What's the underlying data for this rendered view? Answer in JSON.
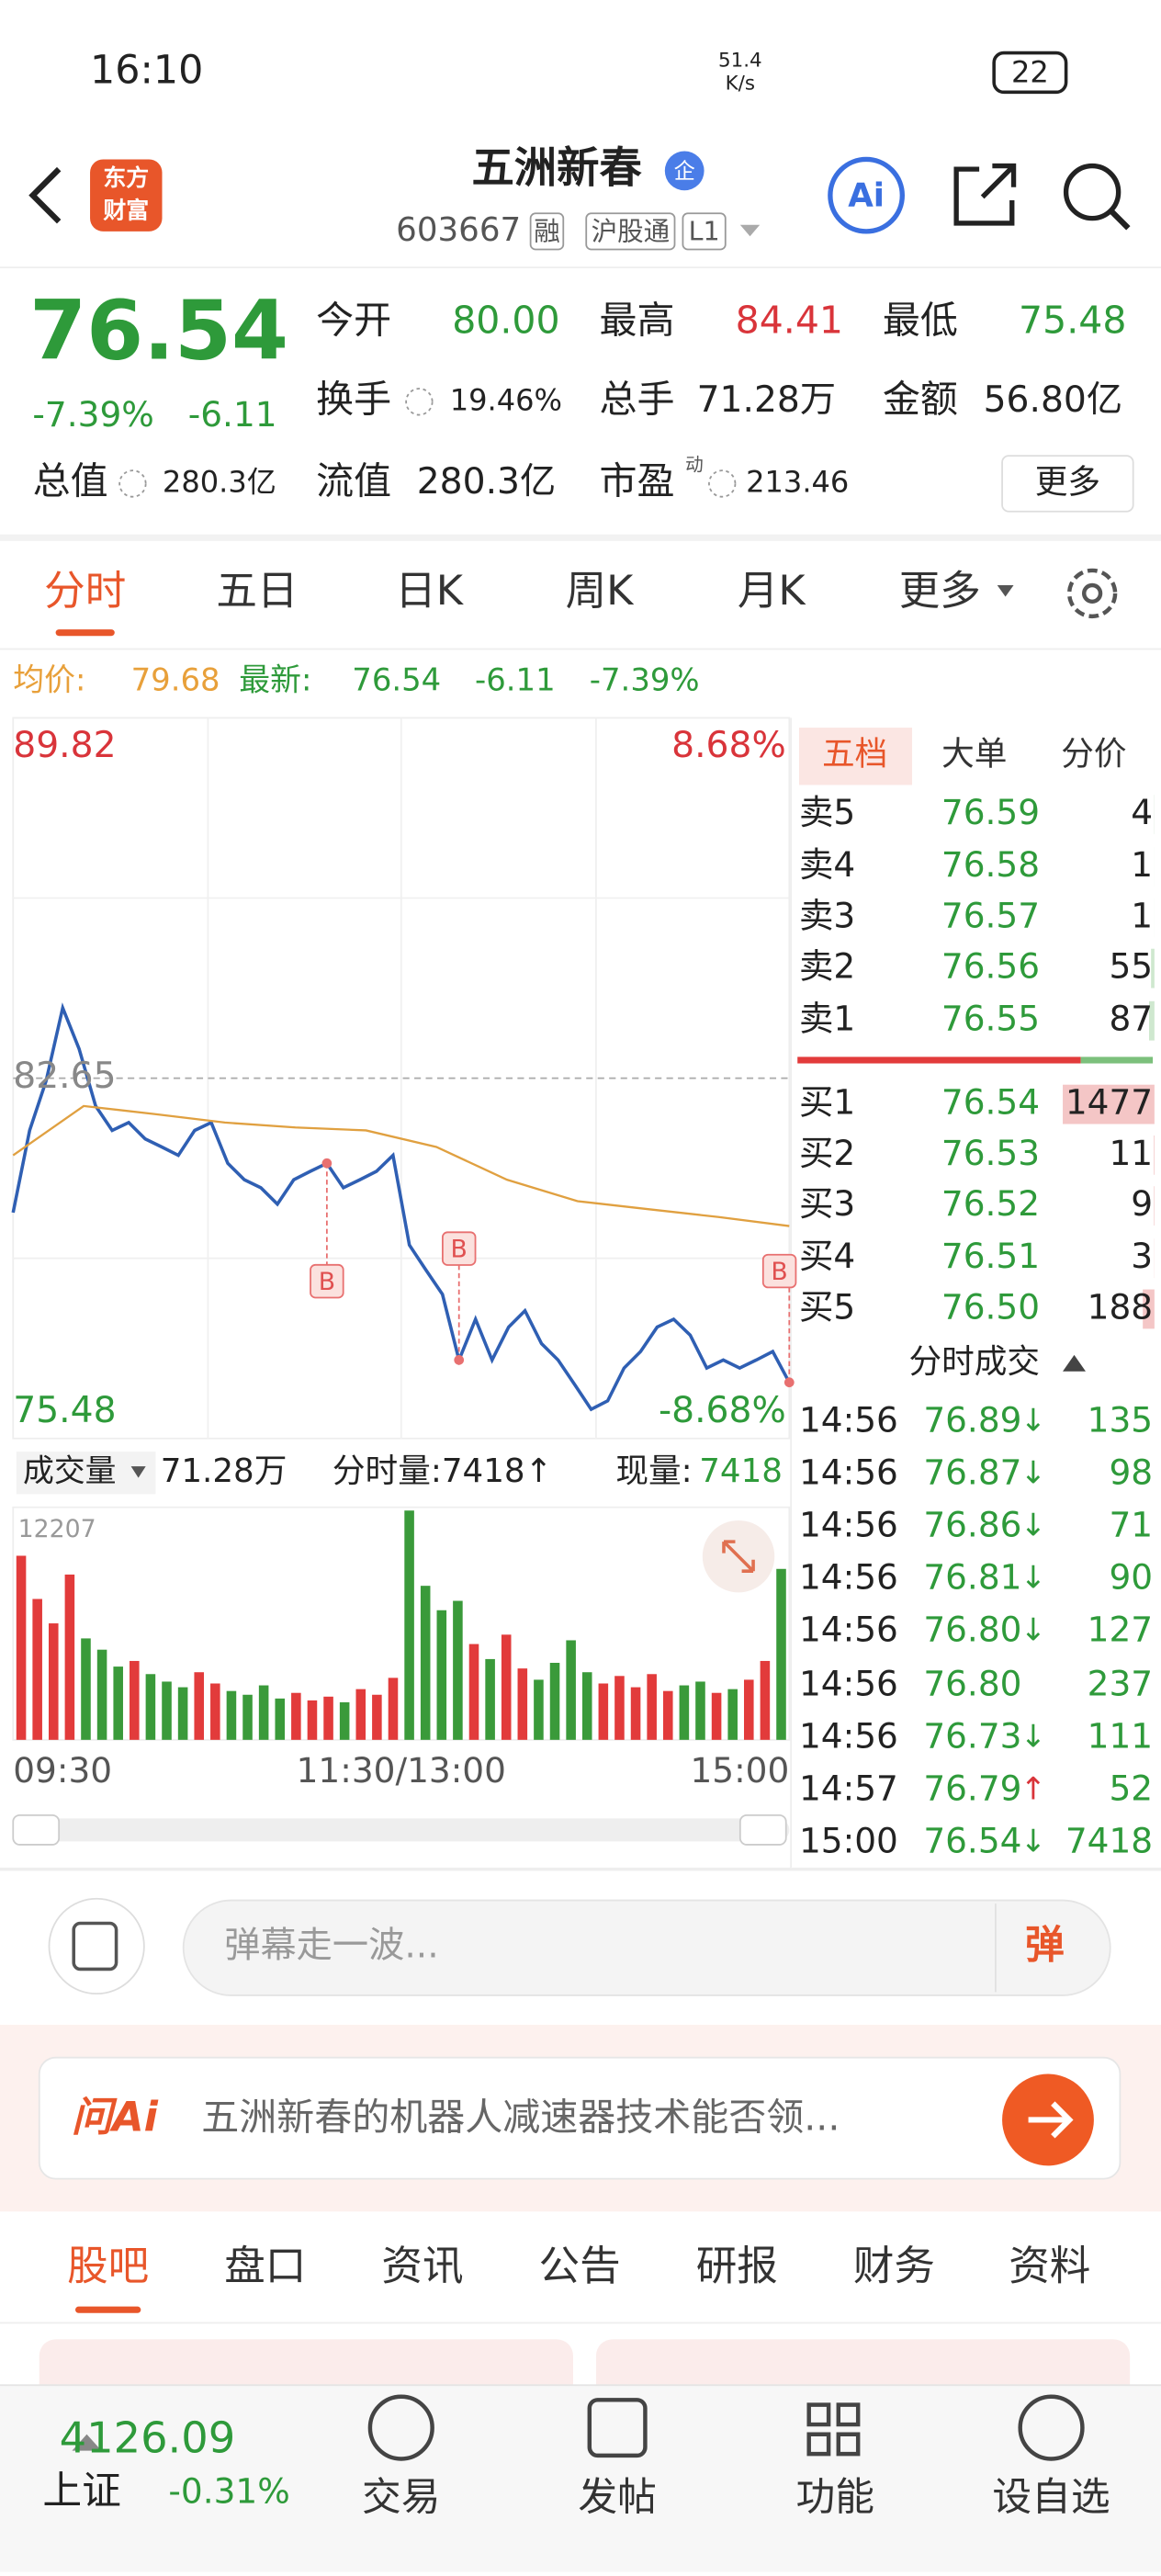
{
  "status_bar": {
    "time": "16:10",
    "net_speed": "51.4",
    "net_unit": "K/s",
    "battery": "22"
  },
  "header": {
    "logo": [
      "东方",
      "财富"
    ],
    "name": "五洲新春",
    "badge": "企",
    "code": "603667",
    "tags": [
      "融",
      "沪股通",
      "L1"
    ],
    "ai": "Ai"
  },
  "quote": {
    "price": "76.54",
    "change_pct": "-7.39%",
    "change": "-6.11",
    "stats": [
      {
        "label": "今开",
        "value": "80.00"
      },
      {
        "label": "最高",
        "value": "84.41"
      },
      {
        "label": "最低",
        "value": "75.48"
      },
      {
        "label": "换手",
        "value": "19.46%"
      },
      {
        "label": "总手",
        "value": "71.28万"
      },
      {
        "label": "金额",
        "value": "56.80亿"
      },
      {
        "label": "总值",
        "value": "280.3亿"
      },
      {
        "label": "流值",
        "value": "280.3亿"
      },
      {
        "label": "市盈",
        "value": "213.46"
      }
    ],
    "pe_mark": "动",
    "more": "更多"
  },
  "tabs": {
    "items": [
      "分时",
      "五日",
      "日K",
      "周K",
      "月K",
      "更多"
    ]
  },
  "intraday": {
    "avg_label": "均价:",
    "avg": "79.68",
    "latest_label": "最新:",
    "latest": "76.54",
    "change": "-6.11",
    "change_pct": "-7.39%",
    "chart": {
      "type": "line",
      "ylim": [
        75.48,
        89.82
      ],
      "top_label": "89.82",
      "top_pct": "8.68%",
      "bottom_label": "75.48",
      "bottom_pct": "-8.68%",
      "ref": {
        "value": 82.65,
        "label": "82.65"
      },
      "series": [
        {
          "color": "#2f5fb3",
          "values": [
            79.95,
            81.6,
            82.6,
            84.06,
            83.24,
            82.09,
            81.6,
            81.76,
            81.43,
            81.27,
            81.1,
            81.6,
            81.76,
            80.94,
            80.61,
            80.45,
            80.12,
            80.61,
            80.78,
            80.94,
            80.45,
            80.61,
            80.78,
            81.1,
            79.3,
            78.8,
            78.31,
            76.99,
            77.81,
            76.99,
            77.65,
            77.98,
            77.32,
            76.99,
            76.5,
            76.0,
            76.17,
            76.83,
            77.16,
            77.65,
            77.81,
            77.49,
            76.83,
            76.99,
            76.83,
            76.99,
            77.16,
            76.54
          ]
        },
        {
          "color": "#e0a040",
          "values": [
            81.1,
            82.09,
            81.93,
            81.76,
            81.66,
            81.6,
            81.27,
            80.61,
            80.18,
            80.02,
            79.86,
            79.68
          ]
        }
      ],
      "markers": [
        "B",
        "B",
        "B"
      ]
    },
    "volume": {
      "selector": "成交量",
      "total": "71.28万",
      "tick_volume": "分时量:7418↑",
      "current_label": "现量:",
      "current": "7418",
      "ylim": [
        0,
        12207
      ],
      "yticks": [
        12207
      ],
      "values": [
        9800,
        7500,
        6200,
        8800,
        5400,
        4800,
        3900,
        4200,
        3500,
        3100,
        2800,
        3600,
        3000,
        2600,
        2400,
        2900,
        2200,
        2500,
        2100,
        2300,
        2000,
        2700,
        2400,
        3300,
        12207,
        8200,
        6900,
        7400,
        5100,
        4300,
        5600,
        3800,
        3200,
        4100,
        5300,
        3600,
        3000,
        3400,
        2800,
        3500,
        2600,
        2900,
        3100,
        2500,
        2700,
        3200,
        4200,
        9100
      ],
      "up_color": "#e23b3b",
      "down_color": "#3a9a3a",
      "xticks": [
        "09:30",
        "11:30/13:00",
        "15:00"
      ]
    }
  },
  "order_book": {
    "tabs": [
      "五档",
      "大单",
      "分价"
    ],
    "asks": [
      {
        "label": "卖5",
        "price": "76.59",
        "volume": 4
      },
      {
        "label": "卖4",
        "price": "76.58",
        "volume": 1
      },
      {
        "label": "卖3",
        "price": "76.57",
        "volume": 1
      },
      {
        "label": "卖2",
        "price": "76.56",
        "volume": 55
      },
      {
        "label": "卖1",
        "price": "76.55",
        "volume": 87
      }
    ],
    "bids": [
      {
        "label": "买1",
        "price": "76.54",
        "volume": 1477
      },
      {
        "label": "买2",
        "price": "76.53",
        "volume": 11
      },
      {
        "label": "买3",
        "price": "76.52",
        "volume": 9
      },
      {
        "label": "买4",
        "price": "76.51",
        "volume": 3
      },
      {
        "label": "买5",
        "price": "76.50",
        "volume": 188
      }
    ],
    "trades_title": "分时成交",
    "trades": [
      {
        "time": "14:56",
        "price": "76.89",
        "dir": "↓",
        "volume": "135"
      },
      {
        "time": "14:56",
        "price": "76.87",
        "dir": "↓",
        "volume": "98"
      },
      {
        "time": "14:56",
        "price": "76.86",
        "dir": "↓",
        "volume": "71"
      },
      {
        "time": "14:56",
        "price": "76.81",
        "dir": "↓",
        "volume": "90"
      },
      {
        "time": "14:56",
        "price": "76.80",
        "dir": "↓",
        "volume": "127"
      },
      {
        "time": "14:56",
        "price": "76.80",
        "volume": "237"
      },
      {
        "time": "14:56",
        "price": "76.73",
        "dir": "↓",
        "volume": "111"
      },
      {
        "time": "14:57",
        "price": "76.79",
        "dir": "↑",
        "volume": "52"
      },
      {
        "time": "15:00",
        "price": "76.54",
        "dir": "↓",
        "volume": "7418"
      }
    ]
  },
  "danmu": {
    "placeholder": "弹幕走一波...",
    "button": "弹"
  },
  "ask_ai": {
    "brand": "问Ai",
    "question": "五洲新春的机器人减速器技术能否领..."
  },
  "section_tabs": [
    "股吧",
    "盘口",
    "资讯",
    "公告",
    "研报",
    "财务",
    "资料"
  ],
  "bottom_bar": {
    "index_value": "4126.09",
    "index_name": "上证",
    "index_change": "-0.31%",
    "actions": [
      "交易",
      "发帖",
      "功能",
      "设自选"
    ]
  }
}
